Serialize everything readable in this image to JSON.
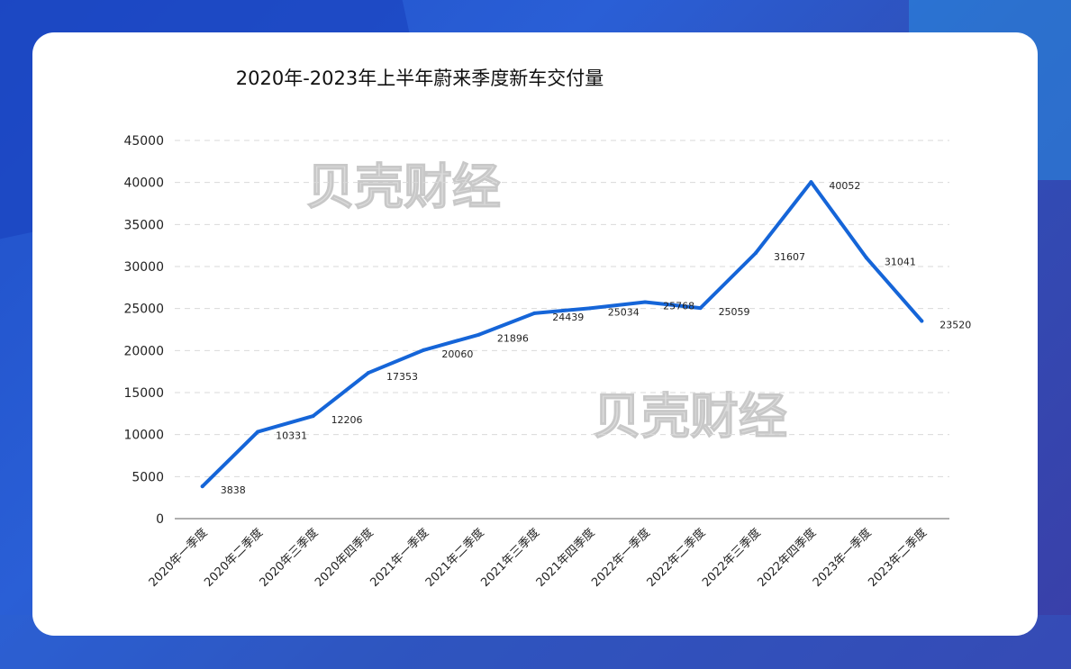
{
  "chart_data": {
    "type": "line",
    "title": "2020年-2023年上半年蔚来季度新车交付量",
    "categories": [
      "2020年一季度",
      "2020年二季度",
      "2020年三季度",
      "2020年四季度",
      "2021年一季度",
      "2021年二季度",
      "2021年三季度",
      "2021年四季度",
      "2022年一季度",
      "2022年二季度",
      "2022年三季度",
      "2022年四季度",
      "2023年一季度",
      "2023年二季度"
    ],
    "series": [
      {
        "values": [
          3838,
          10331,
          12206,
          17353,
          20060,
          21896,
          24439,
          25034,
          25768,
          25059,
          31607,
          40052,
          31041,
          23520
        ]
      }
    ],
    "ylim": [
      0,
      45000
    ],
    "yticks": [
      0,
      5000,
      10000,
      15000,
      20000,
      25000,
      30000,
      35000,
      40000,
      45000
    ],
    "grid": true,
    "line_color": "#1565d8",
    "watermark": "贝壳财经"
  }
}
